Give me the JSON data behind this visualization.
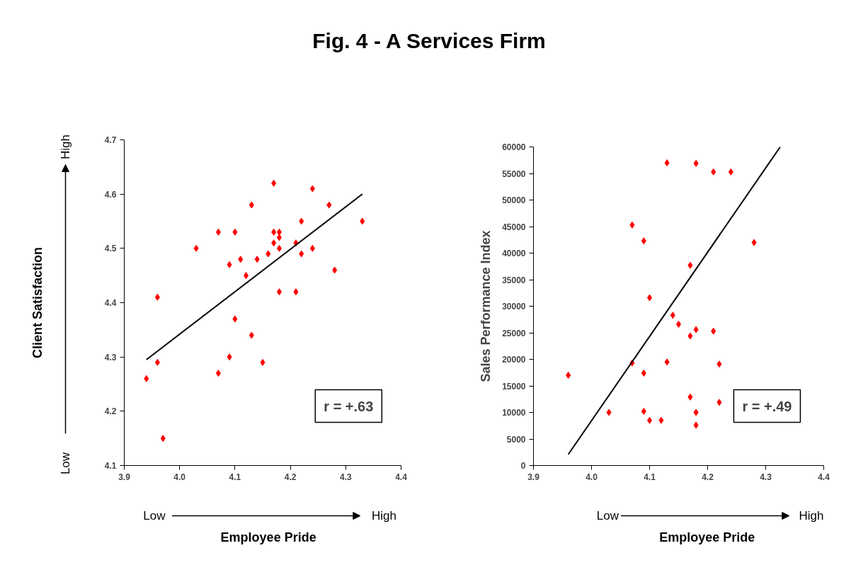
{
  "chart_data": [
    {
      "type": "scatter",
      "title": "Fig. 4 - A Services Firm",
      "xlabel": "Employee Pride",
      "ylabel": "Client Satisfaction",
      "xlim": [
        3.9,
        4.4
      ],
      "xticks": [
        3.9,
        {
          "value": 4.0,
          "label": "4.0"
        },
        4.1,
        4.2,
        4.3,
        4.4
      ],
      "ylim": [
        4.1,
        4.7
      ],
      "yticks": [
        4.1,
        4.2,
        4.3,
        4.4,
        4.5,
        4.6,
        4.7
      ],
      "grid": false,
      "series": [
        {
          "type": "scatter",
          "marker": "diamond",
          "color": "#ff0000",
          "x": [
            3.94,
            3.96,
            3.96,
            3.97,
            4.03,
            4.07,
            4.07,
            4.09,
            4.09,
            4.1,
            4.1,
            4.11,
            4.12,
            4.13,
            4.13,
            4.14,
            4.15,
            4.16,
            4.17,
            4.17,
            4.17,
            4.18,
            4.18,
            4.18,
            4.18,
            4.21,
            4.21,
            4.22,
            4.22,
            4.24,
            4.24,
            4.27,
            4.28,
            4.33
          ],
          "values": [
            4.26,
            4.41,
            4.29,
            4.15,
            4.5,
            4.53,
            4.27,
            4.47,
            4.3,
            4.53,
            4.37,
            4.48,
            4.45,
            4.58,
            4.34,
            4.48,
            4.29,
            4.49,
            4.62,
            4.53,
            4.51,
            4.53,
            4.52,
            4.5,
            4.42,
            4.51,
            4.42,
            4.55,
            4.49,
            4.61,
            4.5,
            4.58,
            4.46,
            4.55
          ]
        },
        {
          "type": "line",
          "line_style": "solid",
          "color": "#000000",
          "x": [
            3.94,
            4.33
          ],
          "values": [
            4.295,
            4.6
          ]
        }
      ],
      "annotations": [
        "Low",
        "High",
        "Low",
        "High",
        "r = +.63"
      ]
    },
    {
      "type": "scatter",
      "xlabel": "Employee Pride",
      "ylabel": "Sales Performance Index",
      "xlim": [
        3.9,
        4.4
      ],
      "xticks": [
        3.9,
        {
          "value": 4.0,
          "label": "4.0"
        },
        4.1,
        4.2,
        4.3,
        4.4
      ],
      "ylim": [
        0,
        60000
      ],
      "yticks": [
        0,
        5000,
        10000,
        15000,
        20000,
        25000,
        30000,
        35000,
        40000,
        45000,
        50000,
        55000,
        60000
      ],
      "grid": false,
      "series": [
        {
          "type": "scatter",
          "marker": "diamond",
          "color": "#ff0000",
          "x": [
            3.96,
            4.03,
            4.07,
            4.07,
            4.09,
            4.09,
            4.09,
            4.1,
            4.1,
            4.12,
            4.13,
            4.13,
            4.14,
            4.15,
            4.17,
            4.17,
            4.17,
            4.18,
            4.18,
            4.18,
            4.18,
            4.21,
            4.21,
            4.22,
            4.22,
            4.24,
            4.28
          ],
          "values": [
            17000,
            10000,
            45300,
            19300,
            42300,
            17400,
            10200,
            31600,
            8500,
            8500,
            57000,
            19500,
            28300,
            26600,
            37700,
            24400,
            12900,
            56900,
            25600,
            10000,
            7600,
            55300,
            25300,
            19100,
            11900,
            55300,
            42000
          ]
        },
        {
          "type": "line",
          "line_style": "solid",
          "color": "#000000",
          "x": [
            3.96,
            4.325
          ],
          "values": [
            2100,
            60000
          ]
        }
      ],
      "annotations": [
        "Low",
        "High",
        "r = +.49"
      ]
    }
  ]
}
